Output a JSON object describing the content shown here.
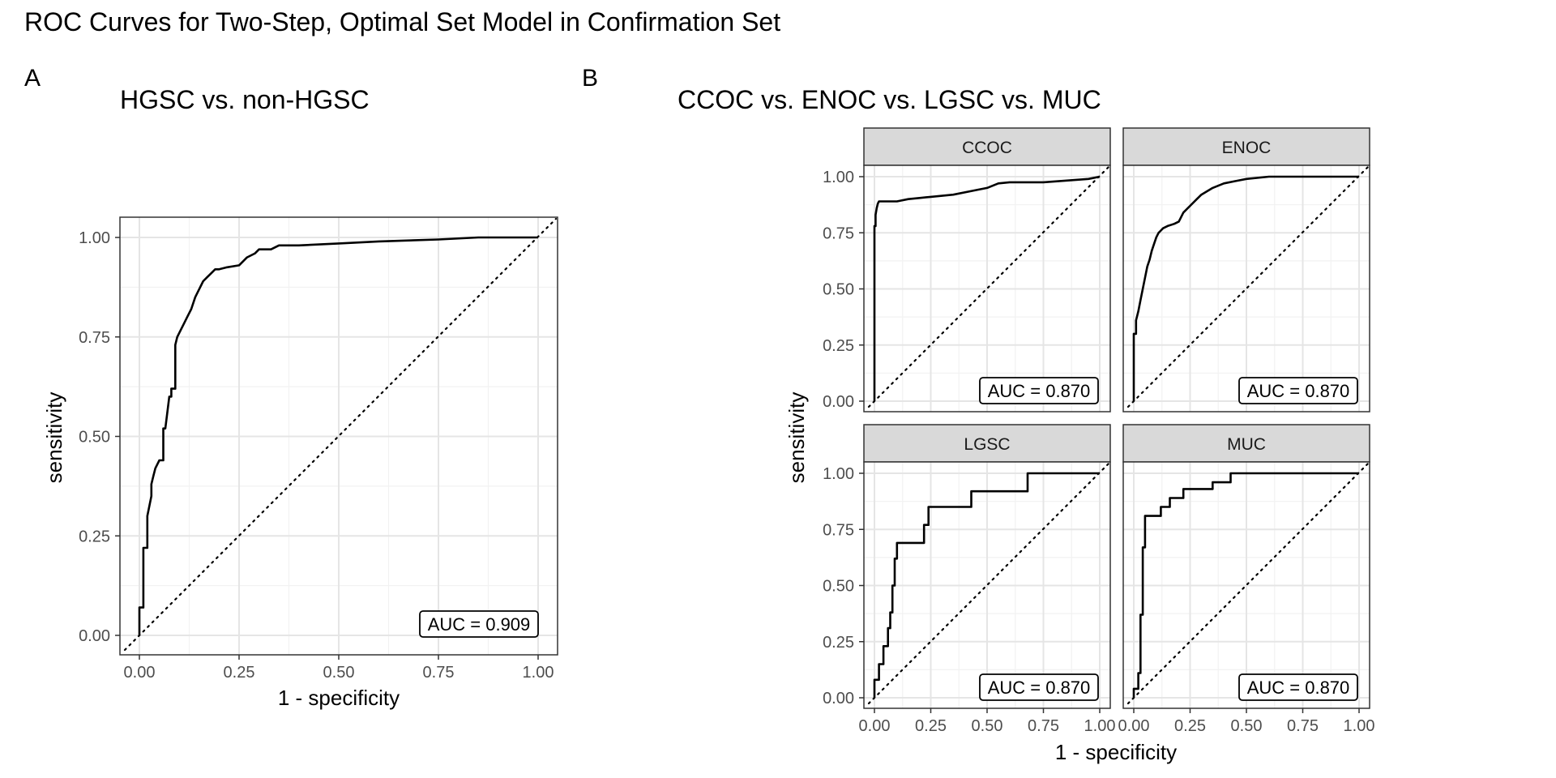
{
  "title": "ROC Curves for Two-Step, Optimal Set Model in Confirmation Set",
  "panel_a": {
    "tag": "A",
    "subtitle": "HGSC vs. non-HGSC",
    "xlabel": "1 - specificity",
    "ylabel": "sensitivity",
    "auc_label": "AUC = 0.909",
    "ticks": [
      "0.00",
      "0.25",
      "0.50",
      "0.75",
      "1.00"
    ]
  },
  "panel_b": {
    "tag": "B",
    "subtitle": "CCOC vs. ENOC vs. LGSC vs. MUC",
    "xlabel": "1 - specificity",
    "ylabel": "sensitivity",
    "ticks": [
      "0.00",
      "0.25",
      "0.50",
      "0.75",
      "1.00"
    ],
    "facets": [
      {
        "strip": "CCOC",
        "auc_label": "AUC = 0.870"
      },
      {
        "strip": "ENOC",
        "auc_label": "AUC = 0.870"
      },
      {
        "strip": "LGSC",
        "auc_label": "AUC = 0.870"
      },
      {
        "strip": "MUC",
        "auc_label": "AUC = 0.870"
      }
    ]
  },
  "colors": {
    "curve": "#000000",
    "grid_major": "#e5e5e5",
    "grid_minor": "#f2f2f2",
    "strip_fill": "#d9d9d9",
    "panel_border": "#333333"
  },
  "chart_data": [
    {
      "type": "line",
      "title": "HGSC vs. non-HGSC",
      "xlabel": "1 - specificity",
      "ylabel": "sensitivity",
      "xlim": [
        0,
        1
      ],
      "ylim": [
        0,
        1
      ],
      "grid": true,
      "annotation": "AUC = 0.909",
      "series": [
        {
          "x": [
            0,
            0,
            0.01,
            0.01,
            0.02,
            0.02,
            0.03,
            0.03,
            0.035,
            0.04,
            0.05,
            0.06,
            0.06,
            0.065,
            0.075,
            0.08,
            0.08,
            0.09,
            0.09,
            0.095,
            0.1,
            0.1,
            0.115,
            0.12,
            0.13,
            0.14,
            0.15,
            0.16,
            0.17,
            0.18,
            0.19,
            0.2,
            0.22,
            0.25,
            0.27,
            0.29,
            0.3,
            0.33,
            0.35,
            0.4,
            0.5,
            0.6,
            0.75,
            0.85,
            1
          ],
          "y": [
            0,
            0.07,
            0.07,
            0.22,
            0.22,
            0.3,
            0.35,
            0.38,
            0.4,
            0.42,
            0.44,
            0.44,
            0.52,
            0.52,
            0.6,
            0.6,
            0.62,
            0.62,
            0.73,
            0.75,
            0.76,
            0.76,
            0.79,
            0.8,
            0.82,
            0.85,
            0.87,
            0.89,
            0.9,
            0.91,
            0.92,
            0.92,
            0.925,
            0.93,
            0.95,
            0.96,
            0.97,
            0.97,
            0.98,
            0.98,
            0.985,
            0.99,
            0.995,
            1,
            1
          ]
        }
      ]
    },
    {
      "type": "line",
      "title": "CCOC",
      "xlabel": "1 - specificity",
      "ylabel": "sensitivity",
      "xlim": [
        0,
        1
      ],
      "ylim": [
        0,
        1
      ],
      "grid": true,
      "annotation": "AUC = 0.870",
      "series": [
        {
          "x": [
            0,
            0,
            0.005,
            0.005,
            0.01,
            0.015,
            0.02,
            0.04,
            0.1,
            0.15,
            0.2,
            0.25,
            0.35,
            0.45,
            0.5,
            0.55,
            0.6,
            0.75,
            0.95,
            1
          ],
          "y": [
            0,
            0.78,
            0.78,
            0.83,
            0.86,
            0.88,
            0.89,
            0.89,
            0.89,
            0.9,
            0.905,
            0.91,
            0.92,
            0.94,
            0.95,
            0.97,
            0.975,
            0.975,
            0.99,
            1
          ]
        }
      ]
    },
    {
      "type": "line",
      "title": "ENOC",
      "xlabel": "1 - specificity",
      "ylabel": "sensitivity",
      "xlim": [
        0,
        1
      ],
      "ylim": [
        0,
        1
      ],
      "grid": true,
      "annotation": "AUC = 0.870",
      "series": [
        {
          "x": [
            0,
            0,
            0.01,
            0.01,
            0.02,
            0.03,
            0.04,
            0.05,
            0.06,
            0.07,
            0.08,
            0.09,
            0.1,
            0.11,
            0.12,
            0.13,
            0.15,
            0.18,
            0.2,
            0.22,
            0.25,
            0.28,
            0.3,
            0.35,
            0.4,
            0.45,
            0.5,
            0.6,
            0.7,
            0.8,
            1
          ],
          "y": [
            0,
            0.3,
            0.3,
            0.36,
            0.4,
            0.45,
            0.5,
            0.55,
            0.6,
            0.63,
            0.67,
            0.7,
            0.73,
            0.75,
            0.76,
            0.77,
            0.78,
            0.79,
            0.8,
            0.84,
            0.87,
            0.9,
            0.92,
            0.95,
            0.97,
            0.98,
            0.99,
            1,
            1,
            1,
            1
          ]
        }
      ]
    },
    {
      "type": "line",
      "title": "LGSC",
      "xlabel": "1 - specificity",
      "ylabel": "sensitivity",
      "xlim": [
        0,
        1
      ],
      "ylim": [
        0,
        1
      ],
      "grid": true,
      "annotation": "AUC = 0.870",
      "series": [
        {
          "x": [
            0,
            0,
            0.02,
            0.02,
            0.04,
            0.04,
            0.06,
            0.06,
            0.07,
            0.07,
            0.08,
            0.08,
            0.09,
            0.09,
            0.1,
            0.1,
            0.22,
            0.22,
            0.24,
            0.24,
            0.43,
            0.43,
            0.68,
            0.68,
            1
          ],
          "y": [
            0,
            0.08,
            0.08,
            0.15,
            0.15,
            0.23,
            0.23,
            0.31,
            0.31,
            0.38,
            0.38,
            0.5,
            0.5,
            0.62,
            0.62,
            0.69,
            0.69,
            0.77,
            0.77,
            0.85,
            0.85,
            0.92,
            0.92,
            1,
            1
          ]
        }
      ]
    },
    {
      "type": "line",
      "title": "MUC",
      "xlabel": "1 - specificity",
      "ylabel": "sensitivity",
      "xlim": [
        0,
        1
      ],
      "ylim": [
        0,
        1
      ],
      "grid": true,
      "annotation": "AUC = 0.870",
      "series": [
        {
          "x": [
            0,
            0,
            0.02,
            0.02,
            0.03,
            0.03,
            0.04,
            0.04,
            0.05,
            0.05,
            0.12,
            0.12,
            0.16,
            0.16,
            0.22,
            0.22,
            0.26,
            0.26,
            0.35,
            0.35,
            0.43,
            0.43,
            0.5,
            0.5,
            1
          ],
          "y": [
            0,
            0.04,
            0.04,
            0.11,
            0.11,
            0.37,
            0.37,
            0.67,
            0.67,
            0.81,
            0.81,
            0.85,
            0.85,
            0.89,
            0.89,
            0.93,
            0.93,
            0.93,
            0.93,
            0.96,
            0.96,
            1,
            1,
            1,
            1
          ]
        }
      ]
    }
  ]
}
